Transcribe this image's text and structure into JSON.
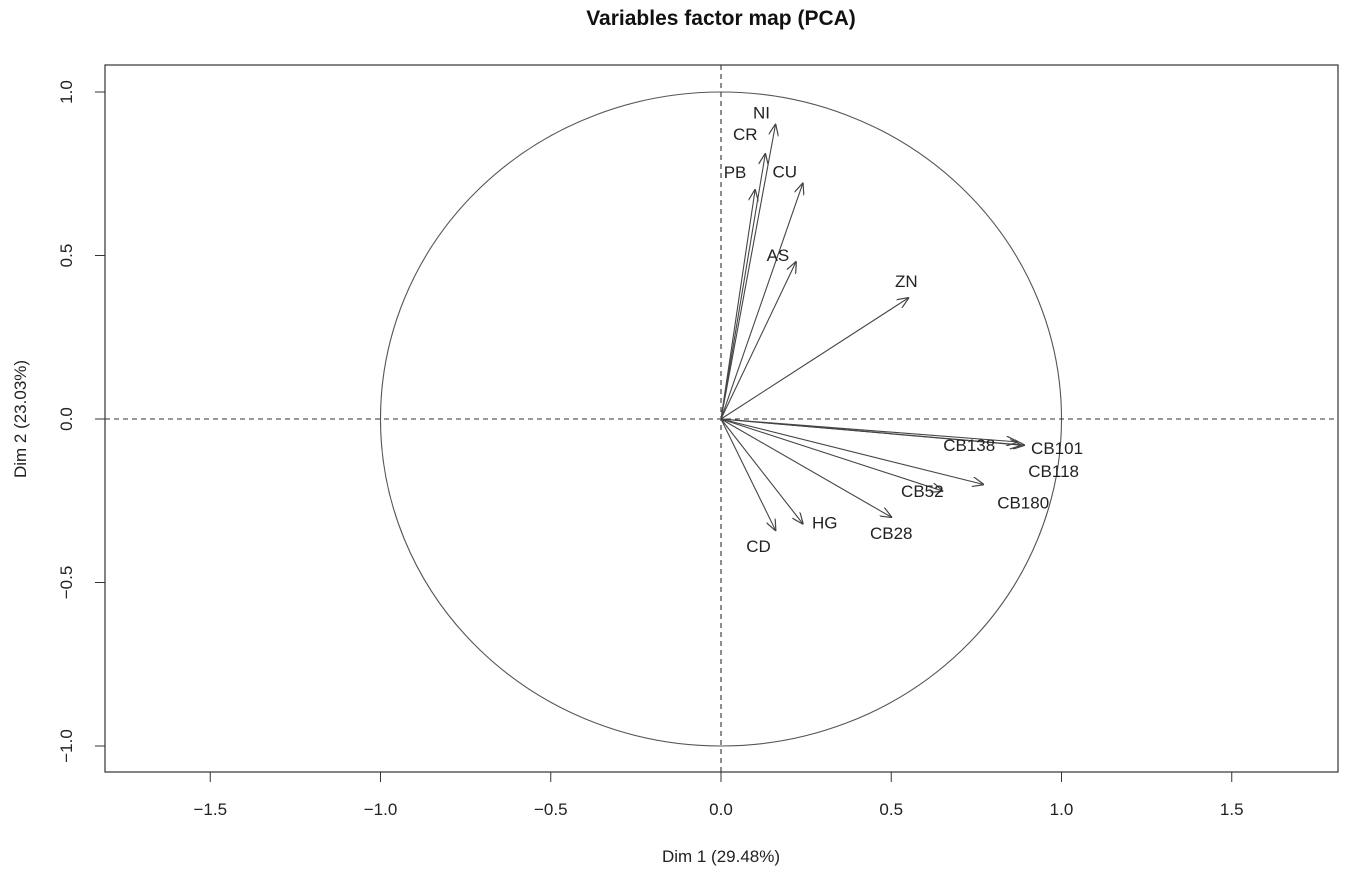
{
  "chart_data": {
    "type": "scatter",
    "subtype": "pca-variables-correlation-circle",
    "title": "Variables factor map (PCA)",
    "xlabel": "Dim 1 (29.48%)",
    "ylabel": "Dim 2 (23.03%)",
    "xlim": [
      -1.8,
      1.8
    ],
    "ylim": [
      -1.08,
      1.08
    ],
    "xticks": [
      -1.5,
      -1.0,
      -0.5,
      0.0,
      0.5,
      1.0,
      1.5
    ],
    "xtick_labels": [
      "−1.5",
      "−1.0",
      "−0.5",
      "0.0",
      "0.5",
      "1.0",
      "1.5"
    ],
    "yticks": [
      -1.0,
      -0.5,
      0.0,
      0.5,
      1.0
    ],
    "ytick_labels": [
      "−1.0",
      "−0.5",
      "0.0",
      "0.5",
      "1.0"
    ],
    "unit_circle": true,
    "reference_lines": "dashed at x=0 and y=0",
    "grid": false,
    "legend": "none",
    "colors": {
      "arrow": "#444444",
      "circle": "#555555",
      "text": "#222222"
    },
    "variables": [
      {
        "name": "NI",
        "x": 0.16,
        "y": 0.9
      },
      {
        "name": "CR",
        "x": 0.13,
        "y": 0.81
      },
      {
        "name": "PB",
        "x": 0.1,
        "y": 0.7
      },
      {
        "name": "CU",
        "x": 0.24,
        "y": 0.72
      },
      {
        "name": "AS",
        "x": 0.22,
        "y": 0.48
      },
      {
        "name": "ZN",
        "x": 0.55,
        "y": 0.37
      },
      {
        "name": "CB138",
        "x": 0.87,
        "y": -0.07
      },
      {
        "name": "CB101",
        "x": 0.89,
        "y": -0.08
      },
      {
        "name": "CB118",
        "x": 0.88,
        "y": -0.08
      },
      {
        "name": "CB52",
        "x": 0.65,
        "y": -0.22
      },
      {
        "name": "CB180",
        "x": 0.77,
        "y": -0.2
      },
      {
        "name": "CB28",
        "x": 0.5,
        "y": -0.3
      },
      {
        "name": "HG",
        "x": 0.24,
        "y": -0.32
      },
      {
        "name": "CD",
        "x": 0.16,
        "y": -0.34
      }
    ]
  }
}
